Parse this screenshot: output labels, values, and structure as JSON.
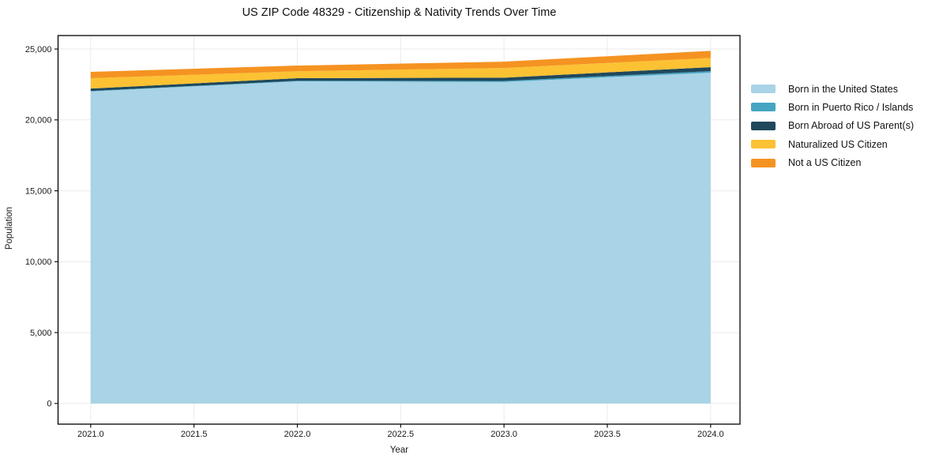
{
  "chart_data": {
    "type": "area",
    "stacked": true,
    "title": "US ZIP Code 48329 - Citizenship & Nativity Trends Over Time",
    "xlabel": "Year",
    "ylabel": "Population",
    "x": [
      2021,
      2022,
      2023,
      2024
    ],
    "series": [
      {
        "name": "Born in the United States",
        "color": "#a9d3e6",
        "values": [
          22010,
          22720,
          22680,
          23330
        ]
      },
      {
        "name": "Born in Puerto Rico / Islands",
        "color": "#45a5c3",
        "values": [
          30,
          40,
          70,
          110
        ]
      },
      {
        "name": "Born Abroad of US Parent(s)",
        "color": "#20485c",
        "values": [
          170,
          180,
          230,
          280
        ]
      },
      {
        "name": "Naturalized US Citizen",
        "color": "#fcc233",
        "values": [
          730,
          490,
          680,
          650
        ]
      },
      {
        "name": "Not a US Citizen",
        "color": "#f59322",
        "values": [
          450,
          400,
          450,
          500
        ]
      }
    ],
    "totals": [
      23390,
      23830,
      24110,
      24870
    ],
    "xticks": {
      "values": [
        2021,
        2021.5,
        2022,
        2022.5,
        2023,
        2023.5,
        2024
      ],
      "labels": [
        "2021.0",
        "2021.5",
        "2022.0",
        "2022.5",
        "2023.0",
        "2023.5",
        "2024.0"
      ]
    },
    "yticks": {
      "values": [
        0,
        5000,
        10000,
        15000,
        20000,
        25000
      ],
      "labels": [
        "0",
        "5,000",
        "10,000",
        "15,000",
        "20,000",
        "25,000"
      ]
    },
    "xlim": [
      2020.842,
      2024.142
    ],
    "ylim": [
      -1458,
      25950
    ],
    "grid": true,
    "legend_position": "outside-right-top",
    "colors": {
      "grid": "#ebebeb",
      "spine": "#000000",
      "text": "#1a1a1a",
      "background": "#ffffff"
    }
  }
}
